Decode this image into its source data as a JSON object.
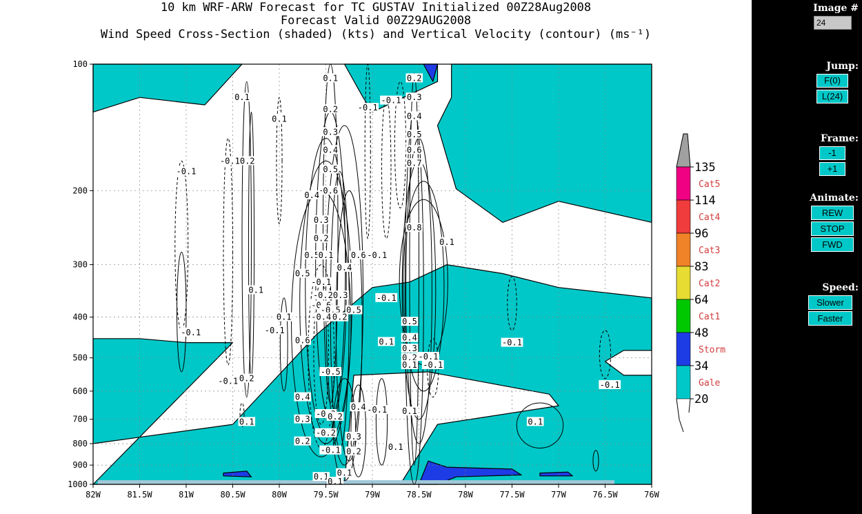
{
  "title": {
    "line1": "10 km WRF-ARW Forecast for TC GUSTAV Initialized 00Z28Aug2008",
    "line2": "Forecast Valid 00Z29AUG2008",
    "line3": "Wind Speed Cross-Section (shaded) (kts) and Vertical Velocity (contour) (ms⁻¹)"
  },
  "sidebar": {
    "image_label": "Image #",
    "image_value": "24",
    "jump_label": "Jump:",
    "jump_first": "F(0)",
    "jump_last": "L(24)",
    "frame_label": "Frame:",
    "frame_prev": "-1",
    "frame_next": "+1",
    "animate_label": "Animate:",
    "rew": "REW",
    "stop": "STOP",
    "fwd": "FWD",
    "speed_label": "Speed:",
    "slower": "Slower",
    "faster": "Faster"
  },
  "colors": {
    "gale": "#00c8c8",
    "storm": "#1e3ce6",
    "cat1": "#00c800",
    "cat2": "#e6dc32",
    "cat3": "#f08228",
    "cat4": "#f03c3c",
    "cat5": "#f00082",
    "above": "#a0a0a0",
    "below": "#ffffff",
    "button": "#00c8c8"
  },
  "chart_data": {
    "type": "heatmap",
    "x_tick_labels": [
      "82W",
      "81.5W",
      "81W",
      "80.5W",
      "80W",
      "79.5W",
      "79W",
      "78.5W",
      "78W",
      "77.5W",
      "77W",
      "76.5W",
      "76W"
    ],
    "x_ticks": [
      -82,
      -81.5,
      -81,
      -80.5,
      -80,
      -79.5,
      -79,
      -78.5,
      -78,
      -77.5,
      -77,
      -76.5,
      -76
    ],
    "xlim": [
      -82,
      -76
    ],
    "y_tick_labels": [
      "100",
      "200",
      "300",
      "400",
      "500",
      "600",
      "700",
      "800",
      "900",
      "1000"
    ],
    "y_ticks": [
      100,
      200,
      300,
      400,
      500,
      600,
      700,
      800,
      900,
      1000
    ],
    "ylim": [
      1000,
      100
    ],
    "y_scale": "log-pressure",
    "grid": true,
    "colorbar": {
      "levels": [
        "20",
        "34",
        "48",
        "64",
        "83",
        "96",
        "114",
        "135"
      ],
      "categories": [
        "Gale",
        "Storm",
        "Cat1",
        "Cat2",
        "Cat3",
        "Cat4",
        "Cat5"
      ]
    },
    "shaded_regions": [
      {
        "category": "Gale",
        "points": [
          [
            -82,
            100
          ],
          [
            -80.4,
            100
          ],
          [
            -80.8,
            125
          ],
          [
            -81.5,
            120
          ],
          [
            -82,
            130
          ]
        ]
      },
      {
        "category": "Gale",
        "points": [
          [
            -79.3,
            100
          ],
          [
            -78.3,
            100
          ],
          [
            -78.3,
            110
          ],
          [
            -79.0,
            130
          ],
          [
            -79.1,
            120
          ]
        ]
      },
      {
        "category": "Gale",
        "points": [
          [
            -78.15,
            100
          ],
          [
            -76,
            100
          ],
          [
            -76,
            238
          ],
          [
            -77.0,
            212
          ],
          [
            -77.6,
            238
          ],
          [
            -78.1,
            198
          ],
          [
            -78.3,
            140
          ],
          [
            -78.15,
            120
          ]
        ]
      },
      {
        "category": "Gale",
        "points": [
          [
            -80.5,
            460
          ],
          [
            -81,
            460
          ],
          [
            -81.5,
            450
          ],
          [
            -82,
            450
          ],
          [
            -82,
            800
          ],
          [
            -80.5,
            720
          ],
          [
            -79.6,
            440
          ],
          [
            -79.0,
            340
          ],
          [
            -78.6,
            330
          ],
          [
            -78.2,
            300
          ],
          [
            -77.6,
            315
          ],
          [
            -77.0,
            340
          ],
          [
            -76,
            360
          ],
          [
            -76,
            480
          ],
          [
            -76.3,
            480
          ],
          [
            -76.5,
            510
          ],
          [
            -76.3,
            550
          ],
          [
            -76,
            550
          ],
          [
            -76,
            1000
          ],
          [
            -78.7,
            1000
          ],
          [
            -78.3,
            720
          ],
          [
            -77.0,
            650
          ],
          [
            -77.1,
            610
          ],
          [
            -78.4,
            540
          ],
          [
            -79.2,
            550
          ],
          [
            -79.3,
            1000
          ],
          [
            -82,
            1000
          ]
        ]
      },
      {
        "category": "Storm",
        "points": [
          [
            -78.5,
            1000
          ],
          [
            -78.4,
            880
          ],
          [
            -78.2,
            910
          ],
          [
            -77.5,
            920
          ],
          [
            -77.4,
            950
          ],
          [
            -78.1,
            960
          ],
          [
            -78.3,
            1000
          ]
        ]
      },
      {
        "category": "Storm",
        "points": [
          [
            -80.6,
            940
          ],
          [
            -80.35,
            930
          ],
          [
            -80.3,
            960
          ],
          [
            -80.6,
            955
          ]
        ]
      },
      {
        "category": "Storm",
        "points": [
          [
            -77.2,
            940
          ],
          [
            -76.9,
            935
          ],
          [
            -76.85,
            955
          ],
          [
            -77.2,
            955
          ]
        ]
      },
      {
        "category": "Storm",
        "points": [
          [
            -78.45,
            100
          ],
          [
            -78.3,
            100
          ],
          [
            -78.35,
            110
          ]
        ]
      }
    ],
    "contour_labels": [
      {
        "text": "0.1",
        "lon": -80.4,
        "p": 120
      },
      {
        "text": "0.1",
        "lon": -80.0,
        "p": 135
      },
      {
        "text": "-0.10.2",
        "lon": -80.45,
        "p": 170
      },
      {
        "text": "-0.1",
        "lon": -81.0,
        "p": 180
      },
      {
        "text": "0.1",
        "lon": -79.45,
        "p": 108
      },
      {
        "text": "0.2",
        "lon": -79.45,
        "p": 128
      },
      {
        "text": "-0.1",
        "lon": -79.05,
        "p": 127
      },
      {
        "text": "-0.1",
        "lon": -78.8,
        "p": 122
      },
      {
        "text": "0.2",
        "lon": -78.55,
        "p": 108
      },
      {
        "text": "0.3",
        "lon": -78.55,
        "p": 120
      },
      {
        "text": "0.4",
        "lon": -78.55,
        "p": 133
      },
      {
        "text": "0.3",
        "lon": -79.45,
        "p": 145
      },
      {
        "text": "0.5",
        "lon": -78.55,
        "p": 147
      },
      {
        "text": "0.6",
        "lon": -78.55,
        "p": 160
      },
      {
        "text": "0.4",
        "lon": -79.45,
        "p": 160
      },
      {
        "text": "0.7",
        "lon": -78.55,
        "p": 172
      },
      {
        "text": "0.5",
        "lon": -79.45,
        "p": 178
      },
      {
        "text": "0.6",
        "lon": -79.45,
        "p": 200
      },
      {
        "text": "0.4",
        "lon": -79.65,
        "p": 205
      },
      {
        "text": "0.3",
        "lon": -79.55,
        "p": 235
      },
      {
        "text": "0.8",
        "lon": -78.55,
        "p": 245
      },
      {
        "text": "0.2",
        "lon": -79.55,
        "p": 260
      },
      {
        "text": "0.1",
        "lon": -78.2,
        "p": 265
      },
      {
        "text": "0.5",
        "lon": -79.65,
        "p": 285
      },
      {
        "text": "0.1",
        "lon": -79.5,
        "p": 285
      },
      {
        "text": "0.6",
        "lon": -79.15,
        "p": 285
      },
      {
        "text": "-0.1",
        "lon": -78.95,
        "p": 285
      },
      {
        "text": "0.4",
        "lon": -79.3,
        "p": 305
      },
      {
        "text": "0.5",
        "lon": -79.75,
        "p": 315
      },
      {
        "text": "-0.1",
        "lon": -79.55,
        "p": 330
      },
      {
        "text": "0.1",
        "lon": -80.25,
        "p": 345
      },
      {
        "text": "-0.20.3",
        "lon": -79.45,
        "p": 355
      },
      {
        "text": "-0.1",
        "lon": -78.85,
        "p": 360
      },
      {
        "text": "-0.6",
        "lon": -79.55,
        "p": 375
      },
      {
        "text": "-0.5",
        "lon": -79.45,
        "p": 385
      },
      {
        "text": "0.5",
        "lon": -79.2,
        "p": 385
      },
      {
        "text": "-0.4",
        "lon": -79.55,
        "p": 400
      },
      {
        "text": "0.2",
        "lon": -79.35,
        "p": 400
      },
      {
        "text": "0.1",
        "lon": -79.95,
        "p": 400
      },
      {
        "text": "0.5",
        "lon": -78.6,
        "p": 410
      },
      {
        "text": "-0.1",
        "lon": -80.95,
        "p": 435
      },
      {
        "text": "-0.1",
        "lon": -80.05,
        "p": 430
      },
      {
        "text": "0.4",
        "lon": -78.6,
        "p": 448
      },
      {
        "text": "0.6",
        "lon": -79.75,
        "p": 455
      },
      {
        "text": "0.1",
        "lon": -78.85,
        "p": 458
      },
      {
        "text": "-0.1",
        "lon": -77.5,
        "p": 460
      },
      {
        "text": "0.3",
        "lon": -78.6,
        "p": 475
      },
      {
        "text": "0.2",
        "lon": -78.6,
        "p": 500
      },
      {
        "text": "-0.1",
        "lon": -78.4,
        "p": 497
      },
      {
        "text": "0.1",
        "lon": -78.6,
        "p": 520
      },
      {
        "text": "-0.1",
        "lon": -78.35,
        "p": 520
      },
      {
        "text": "-0.5",
        "lon": -79.45,
        "p": 540
      },
      {
        "text": "0.2",
        "lon": -80.35,
        "p": 560
      },
      {
        "text": "-0.1",
        "lon": -80.55,
        "p": 568
      },
      {
        "text": "-0.1",
        "lon": -76.45,
        "p": 580
      },
      {
        "text": "0.4",
        "lon": -79.75,
        "p": 620
      },
      {
        "text": "0.4",
        "lon": -79.15,
        "p": 655
      },
      {
        "text": "-0.1",
        "lon": -78.95,
        "p": 665
      },
      {
        "text": "0.1",
        "lon": -78.6,
        "p": 670
      },
      {
        "text": "-0.3",
        "lon": -79.5,
        "p": 680
      },
      {
        "text": "0.2",
        "lon": -79.4,
        "p": 690
      },
      {
        "text": "0.3",
        "lon": -79.75,
        "p": 700
      },
      {
        "text": "0.1",
        "lon": -80.35,
        "p": 710
      },
      {
        "text": "0.1",
        "lon": -77.25,
        "p": 710
      },
      {
        "text": "-0.2",
        "lon": -79.5,
        "p": 755
      },
      {
        "text": "0.3",
        "lon": -79.2,
        "p": 770
      },
      {
        "text": "0.2",
        "lon": -79.75,
        "p": 790
      },
      {
        "text": "0.1",
        "lon": -78.75,
        "p": 815
      },
      {
        "text": "-0.1",
        "lon": -79.45,
        "p": 830
      },
      {
        "text": "0.2",
        "lon": -79.2,
        "p": 835
      },
      {
        "text": "0.1",
        "lon": -79.3,
        "p": 940
      },
      {
        "text": "0.1",
        "lon": -79.55,
        "p": 960
      },
      {
        "text": "0.1",
        "lon": -79.4,
        "p": 985
      }
    ]
  }
}
